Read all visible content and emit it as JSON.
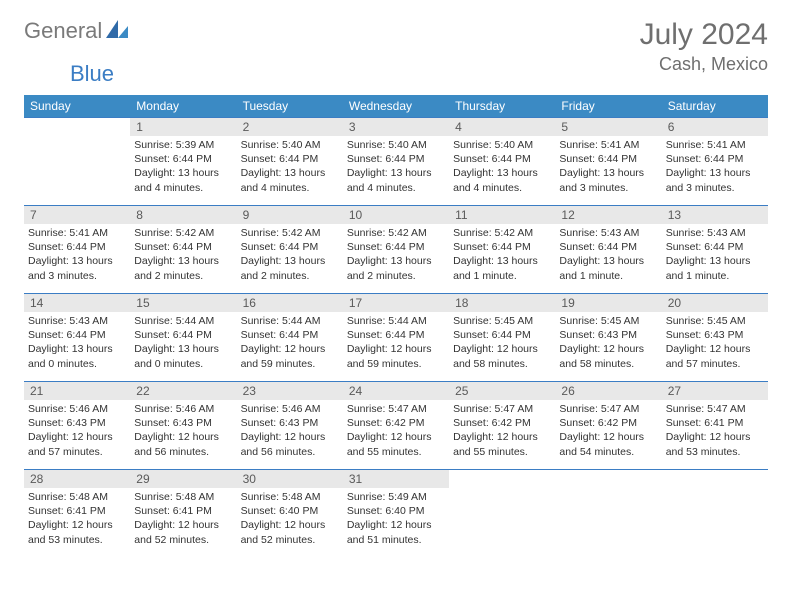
{
  "brand": {
    "part1": "General",
    "part2": "Blue"
  },
  "title": "July 2024",
  "location": "Cash, Mexico",
  "colors": {
    "header_band": "#3b8ac4",
    "rule": "#3b7dc4",
    "daynum_bg": "#e8e8e8",
    "text": "#333333",
    "muted": "#6f6f6f"
  },
  "weekdays": [
    "Sunday",
    "Monday",
    "Tuesday",
    "Wednesday",
    "Thursday",
    "Friday",
    "Saturday"
  ],
  "weeks": [
    [
      null,
      {
        "n": "1",
        "sunrise": "5:39 AM",
        "sunset": "6:44 PM",
        "daylight": "13 hours and 4 minutes."
      },
      {
        "n": "2",
        "sunrise": "5:40 AM",
        "sunset": "6:44 PM",
        "daylight": "13 hours and 4 minutes."
      },
      {
        "n": "3",
        "sunrise": "5:40 AM",
        "sunset": "6:44 PM",
        "daylight": "13 hours and 4 minutes."
      },
      {
        "n": "4",
        "sunrise": "5:40 AM",
        "sunset": "6:44 PM",
        "daylight": "13 hours and 4 minutes."
      },
      {
        "n": "5",
        "sunrise": "5:41 AM",
        "sunset": "6:44 PM",
        "daylight": "13 hours and 3 minutes."
      },
      {
        "n": "6",
        "sunrise": "5:41 AM",
        "sunset": "6:44 PM",
        "daylight": "13 hours and 3 minutes."
      }
    ],
    [
      {
        "n": "7",
        "sunrise": "5:41 AM",
        "sunset": "6:44 PM",
        "daylight": "13 hours and 3 minutes."
      },
      {
        "n": "8",
        "sunrise": "5:42 AM",
        "sunset": "6:44 PM",
        "daylight": "13 hours and 2 minutes."
      },
      {
        "n": "9",
        "sunrise": "5:42 AM",
        "sunset": "6:44 PM",
        "daylight": "13 hours and 2 minutes."
      },
      {
        "n": "10",
        "sunrise": "5:42 AM",
        "sunset": "6:44 PM",
        "daylight": "13 hours and 2 minutes."
      },
      {
        "n": "11",
        "sunrise": "5:42 AM",
        "sunset": "6:44 PM",
        "daylight": "13 hours and 1 minute."
      },
      {
        "n": "12",
        "sunrise": "5:43 AM",
        "sunset": "6:44 PM",
        "daylight": "13 hours and 1 minute."
      },
      {
        "n": "13",
        "sunrise": "5:43 AM",
        "sunset": "6:44 PM",
        "daylight": "13 hours and 1 minute."
      }
    ],
    [
      {
        "n": "14",
        "sunrise": "5:43 AM",
        "sunset": "6:44 PM",
        "daylight": "13 hours and 0 minutes."
      },
      {
        "n": "15",
        "sunrise": "5:44 AM",
        "sunset": "6:44 PM",
        "daylight": "13 hours and 0 minutes."
      },
      {
        "n": "16",
        "sunrise": "5:44 AM",
        "sunset": "6:44 PM",
        "daylight": "12 hours and 59 minutes."
      },
      {
        "n": "17",
        "sunrise": "5:44 AM",
        "sunset": "6:44 PM",
        "daylight": "12 hours and 59 minutes."
      },
      {
        "n": "18",
        "sunrise": "5:45 AM",
        "sunset": "6:44 PM",
        "daylight": "12 hours and 58 minutes."
      },
      {
        "n": "19",
        "sunrise": "5:45 AM",
        "sunset": "6:43 PM",
        "daylight": "12 hours and 58 minutes."
      },
      {
        "n": "20",
        "sunrise": "5:45 AM",
        "sunset": "6:43 PM",
        "daylight": "12 hours and 57 minutes."
      }
    ],
    [
      {
        "n": "21",
        "sunrise": "5:46 AM",
        "sunset": "6:43 PM",
        "daylight": "12 hours and 57 minutes."
      },
      {
        "n": "22",
        "sunrise": "5:46 AM",
        "sunset": "6:43 PM",
        "daylight": "12 hours and 56 minutes."
      },
      {
        "n": "23",
        "sunrise": "5:46 AM",
        "sunset": "6:43 PM",
        "daylight": "12 hours and 56 minutes."
      },
      {
        "n": "24",
        "sunrise": "5:47 AM",
        "sunset": "6:42 PM",
        "daylight": "12 hours and 55 minutes."
      },
      {
        "n": "25",
        "sunrise": "5:47 AM",
        "sunset": "6:42 PM",
        "daylight": "12 hours and 55 minutes."
      },
      {
        "n": "26",
        "sunrise": "5:47 AM",
        "sunset": "6:42 PM",
        "daylight": "12 hours and 54 minutes."
      },
      {
        "n": "27",
        "sunrise": "5:47 AM",
        "sunset": "6:41 PM",
        "daylight": "12 hours and 53 minutes."
      }
    ],
    [
      {
        "n": "28",
        "sunrise": "5:48 AM",
        "sunset": "6:41 PM",
        "daylight": "12 hours and 53 minutes."
      },
      {
        "n": "29",
        "sunrise": "5:48 AM",
        "sunset": "6:41 PM",
        "daylight": "12 hours and 52 minutes."
      },
      {
        "n": "30",
        "sunrise": "5:48 AM",
        "sunset": "6:40 PM",
        "daylight": "12 hours and 52 minutes."
      },
      {
        "n": "31",
        "sunrise": "5:49 AM",
        "sunset": "6:40 PM",
        "daylight": "12 hours and 51 minutes."
      },
      null,
      null,
      null
    ]
  ],
  "labels": {
    "sunrise": "Sunrise:",
    "sunset": "Sunset:",
    "daylight": "Daylight:"
  }
}
